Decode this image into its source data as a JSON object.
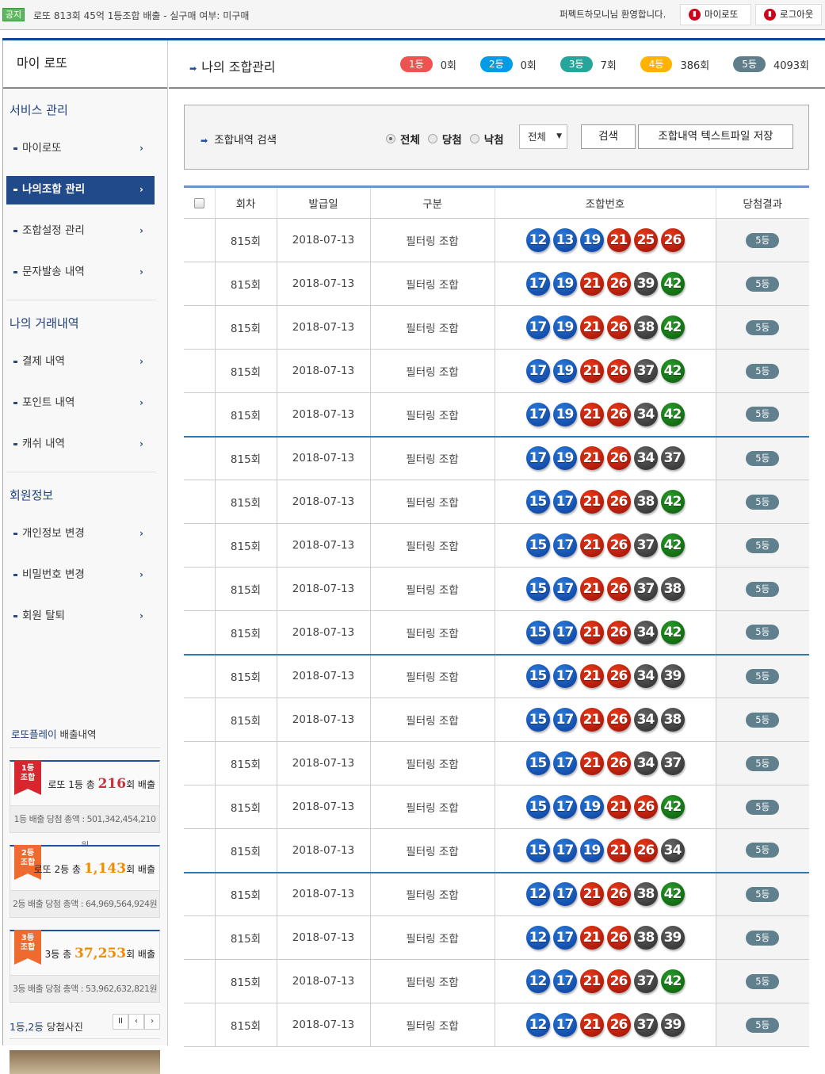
{
  "topbar": {
    "notice_badge": "공지",
    "notice_text": "로또 813회 45억 1등조합 배출 - 실구매 여부: 미구매",
    "welcome": "퍼펙트하모니님 환영합니다.",
    "mylotto_btn": "마이로또",
    "logout_btn": "로그아웃"
  },
  "sidebar": {
    "title": "마이 로또",
    "sections": [
      {
        "title": "서비스 관리",
        "items": [
          "마이로또",
          "나의조합 관리",
          "조합설정 관리",
          "문자발송 내역"
        ]
      },
      {
        "title": "나의 거래내역",
        "items": [
          "결제 내역",
          "포인트 내역",
          "캐쉬 내역"
        ]
      },
      {
        "title": "회원정보",
        "items": [
          "개인정보 변경",
          "비밀번호 변경",
          "회원 탈퇴"
        ]
      }
    ],
    "active_item": "나의조합 관리",
    "history": {
      "title_brand": "로또플레이",
      "title_rest": " 배출내역",
      "cards": [
        {
          "ribbon": "1등\n조합",
          "prefix": "로또 1등 총 ",
          "count": "216",
          "suffix": "회 배출",
          "total": "1등 배출 당첨 총액 : 501,342,454,210원",
          "color": "#c8323a",
          "ribbon_color": "#d8262e"
        },
        {
          "ribbon": "2등\n조합",
          "prefix": "로또 2등 총 ",
          "count": "1,143",
          "suffix": "회 배출",
          "total": "2등 배출 당첨 총액 : 64,969,564,924원",
          "color": "#f08c00",
          "ribbon_color": "#ef6a2e"
        },
        {
          "ribbon": "3등\n조합",
          "prefix": "3등 총 ",
          "count": "37,253",
          "suffix": "회 배출",
          "total": "3등 배출 당첨 총액 : 53,962,632,821원",
          "color": "#f08c00",
          "ribbon_color": "#ef6a2e"
        }
      ]
    },
    "photos": {
      "title_brand": "1등,2등",
      "title_rest": " 당첨사진",
      "pause": "II",
      "prev": "‹",
      "next": "›"
    }
  },
  "main": {
    "title": "나의 조합관리",
    "ranks": [
      {
        "label": "1등",
        "count": "0회",
        "color": "#ef5350"
      },
      {
        "label": "2등",
        "count": "0회",
        "color": "#039be5"
      },
      {
        "label": "3등",
        "count": "7회",
        "color": "#26a69a"
      },
      {
        "label": "4등",
        "count": "386회",
        "color": "#ffb300"
      },
      {
        "label": "5등",
        "count": "4093회",
        "color": "#607d8b"
      }
    ],
    "search": {
      "label": "조합내역 검색",
      "radios": [
        {
          "label": "전체",
          "checked": true
        },
        {
          "label": "당첨",
          "checked": false
        },
        {
          "label": "낙첨",
          "checked": false
        }
      ],
      "select_value": "전체",
      "search_btn": "검색",
      "save_btn": "조합내역 텍스트파일 저장"
    },
    "table": {
      "headers": [
        "회차",
        "발급일",
        "구분",
        "조합번호",
        "당첨결과"
      ],
      "rows": [
        {
          "round": "815회",
          "date": "2018-07-13",
          "type": "필터링 조합",
          "numbers": [
            12,
            13,
            19,
            21,
            25,
            26
          ],
          "result": "5등"
        },
        {
          "round": "815회",
          "date": "2018-07-13",
          "type": "필터링 조합",
          "numbers": [
            17,
            19,
            21,
            26,
            39,
            42
          ],
          "result": "5등"
        },
        {
          "round": "815회",
          "date": "2018-07-13",
          "type": "필터링 조합",
          "numbers": [
            17,
            19,
            21,
            26,
            38,
            42
          ],
          "result": "5등"
        },
        {
          "round": "815회",
          "date": "2018-07-13",
          "type": "필터링 조합",
          "numbers": [
            17,
            19,
            21,
            26,
            37,
            42
          ],
          "result": "5등"
        },
        {
          "round": "815회",
          "date": "2018-07-13",
          "type": "필터링 조합",
          "numbers": [
            17,
            19,
            21,
            26,
            34,
            42
          ],
          "result": "5등"
        },
        {
          "round": "815회",
          "date": "2018-07-13",
          "type": "필터링 조합",
          "numbers": [
            17,
            19,
            21,
            26,
            34,
            37
          ],
          "result": "5등"
        },
        {
          "round": "815회",
          "date": "2018-07-13",
          "type": "필터링 조합",
          "numbers": [
            15,
            17,
            21,
            26,
            38,
            42
          ],
          "result": "5등"
        },
        {
          "round": "815회",
          "date": "2018-07-13",
          "type": "필터링 조합",
          "numbers": [
            15,
            17,
            21,
            26,
            37,
            42
          ],
          "result": "5등"
        },
        {
          "round": "815회",
          "date": "2018-07-13",
          "type": "필터링 조합",
          "numbers": [
            15,
            17,
            21,
            26,
            37,
            38
          ],
          "result": "5등"
        },
        {
          "round": "815회",
          "date": "2018-07-13",
          "type": "필터링 조합",
          "numbers": [
            15,
            17,
            21,
            26,
            34,
            42
          ],
          "result": "5등"
        },
        {
          "round": "815회",
          "date": "2018-07-13",
          "type": "필터링 조합",
          "numbers": [
            15,
            17,
            21,
            26,
            34,
            39
          ],
          "result": "5등"
        },
        {
          "round": "815회",
          "date": "2018-07-13",
          "type": "필터링 조합",
          "numbers": [
            15,
            17,
            21,
            26,
            34,
            38
          ],
          "result": "5등"
        },
        {
          "round": "815회",
          "date": "2018-07-13",
          "type": "필터링 조합",
          "numbers": [
            15,
            17,
            21,
            26,
            34,
            37
          ],
          "result": "5등"
        },
        {
          "round": "815회",
          "date": "2018-07-13",
          "type": "필터링 조합",
          "numbers": [
            15,
            17,
            19,
            21,
            26,
            42
          ],
          "result": "5등"
        },
        {
          "round": "815회",
          "date": "2018-07-13",
          "type": "필터링 조합",
          "numbers": [
            15,
            17,
            19,
            21,
            26,
            34
          ],
          "result": "5등"
        },
        {
          "round": "815회",
          "date": "2018-07-13",
          "type": "필터링 조합",
          "numbers": [
            12,
            17,
            21,
            26,
            38,
            42
          ],
          "result": "5등"
        },
        {
          "round": "815회",
          "date": "2018-07-13",
          "type": "필터링 조합",
          "numbers": [
            12,
            17,
            21,
            26,
            38,
            39
          ],
          "result": "5등"
        },
        {
          "round": "815회",
          "date": "2018-07-13",
          "type": "필터링 조합",
          "numbers": [
            12,
            17,
            21,
            26,
            37,
            42
          ],
          "result": "5등"
        },
        {
          "round": "815회",
          "date": "2018-07-13",
          "type": "필터링 조합",
          "numbers": [
            12,
            17,
            21,
            26,
            37,
            39
          ],
          "result": "5등"
        }
      ]
    }
  }
}
